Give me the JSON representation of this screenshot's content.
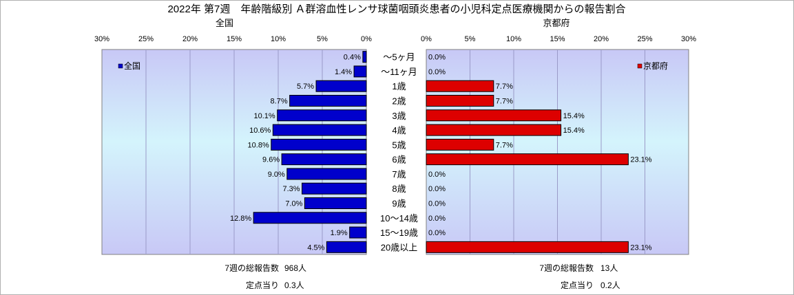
{
  "chart_data": {
    "type": "bar",
    "title": "2022年 第7週　年齢階級別 Ａ群溶血性レンサ球菌咽頭炎患者の小児科定点医療機関からの報告割合",
    "categories": [
      "～5ヶ月",
      "～11ヶ月",
      "1歳",
      "2歳",
      "3歳",
      "4歳",
      "5歳",
      "6歳",
      "7歳",
      "8歳",
      "9歳",
      "10～14歳",
      "15～19歳",
      "20歳以上"
    ],
    "xlim": [
      0,
      30
    ],
    "x_ticks": [
      "30%",
      "25%",
      "20%",
      "15%",
      "10%",
      "5%",
      "0%"
    ],
    "x_ticks_right": [
      "0%",
      "5%",
      "10%",
      "15%",
      "20%",
      "25%",
      "30%"
    ],
    "panels": [
      {
        "name": "全国",
        "label": "全国",
        "legend": "全国",
        "color": "#0000cc",
        "values": [
          0.4,
          1.4,
          5.7,
          8.7,
          10.1,
          10.6,
          10.8,
          9.6,
          9.0,
          7.3,
          7.0,
          12.8,
          1.9,
          4.5
        ],
        "value_labels": [
          "0.4%",
          "1.4%",
          "5.7%",
          "8.7%",
          "10.1%",
          "10.6%",
          "10.8%",
          "9.6%",
          "9.0%",
          "7.3%",
          "7.0%",
          "12.8%",
          "1.9%",
          "4.5%"
        ],
        "total_label": "7週の総報告数",
        "total_value": "968人",
        "per_label": "定点当り",
        "per_value": "0.3人"
      },
      {
        "name": "京都府",
        "label": "京都府",
        "legend": "京都府",
        "color": "#dd0000",
        "values": [
          0.0,
          0.0,
          7.7,
          7.7,
          15.4,
          15.4,
          7.7,
          23.1,
          0.0,
          0.0,
          0.0,
          0.0,
          0.0,
          23.1
        ],
        "value_labels": [
          "0.0%",
          "0.0%",
          "7.7%",
          "7.7%",
          "15.4%",
          "15.4%",
          "7.7%",
          "23.1%",
          "0.0%",
          "0.0%",
          "0.0%",
          "0.0%",
          "0.0%",
          "23.1%"
        ],
        "total_label": "7週の総報告数",
        "total_value": "13人",
        "per_label": "定点当り",
        "per_value": "0.2人"
      }
    ]
  }
}
